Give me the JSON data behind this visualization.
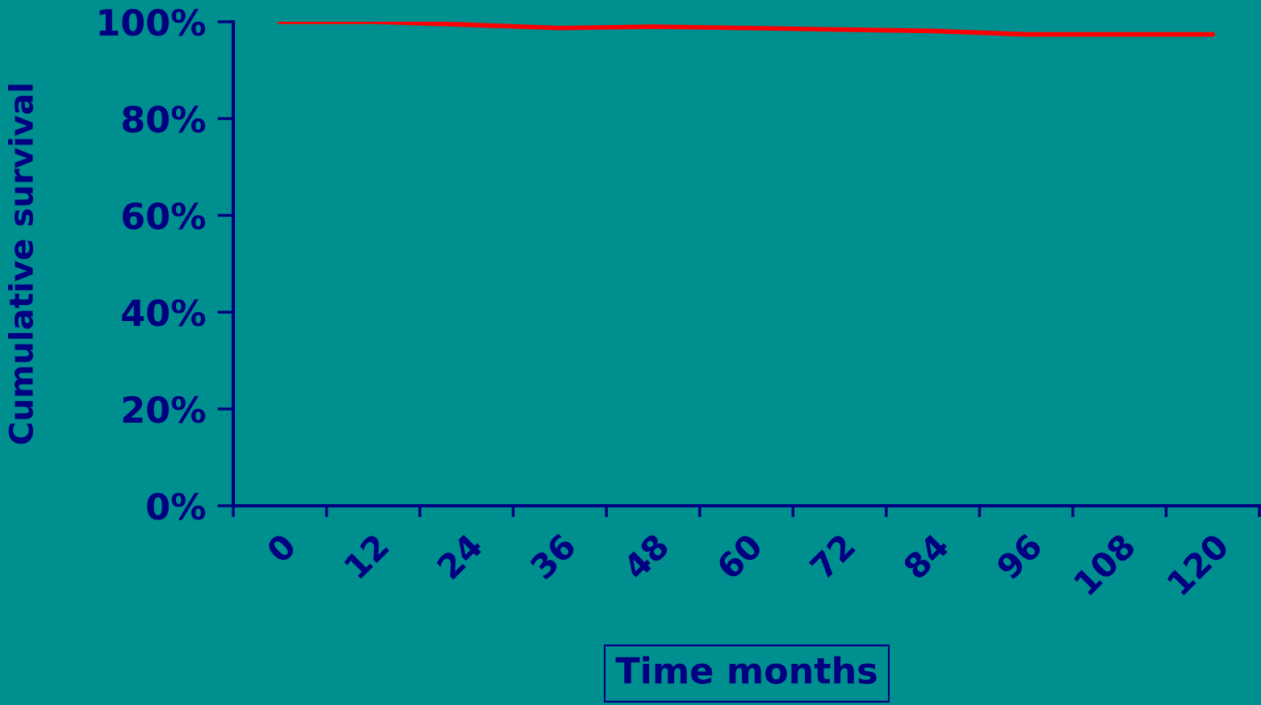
{
  "chart_data": {
    "type": "line",
    "xlabel": "Time months",
    "ylabel": "Cumulative survival",
    "categories": [
      "0",
      "12",
      "24",
      "36",
      "48",
      "60",
      "72",
      "84",
      "96",
      "108",
      "120"
    ],
    "series": [
      {
        "color": "#ff0000",
        "values": [
          100,
          100,
          99.4,
          98.7,
          99.0,
          98.7,
          98.4,
          98.1,
          97.4,
          97.4,
          97.4
        ]
      }
    ],
    "ylim": [
      0,
      100
    ],
    "yticks": [
      {
        "value": 0,
        "label": "0%"
      },
      {
        "value": 20,
        "label": "20%"
      },
      {
        "value": 40,
        "label": "40%"
      },
      {
        "value": 60,
        "label": "60%"
      },
      {
        "value": 80,
        "label": "80%"
      },
      {
        "value": 100,
        "label": "100%"
      }
    ],
    "grid": false,
    "legend": false,
    "marker": "none",
    "line_style": "solid"
  }
}
